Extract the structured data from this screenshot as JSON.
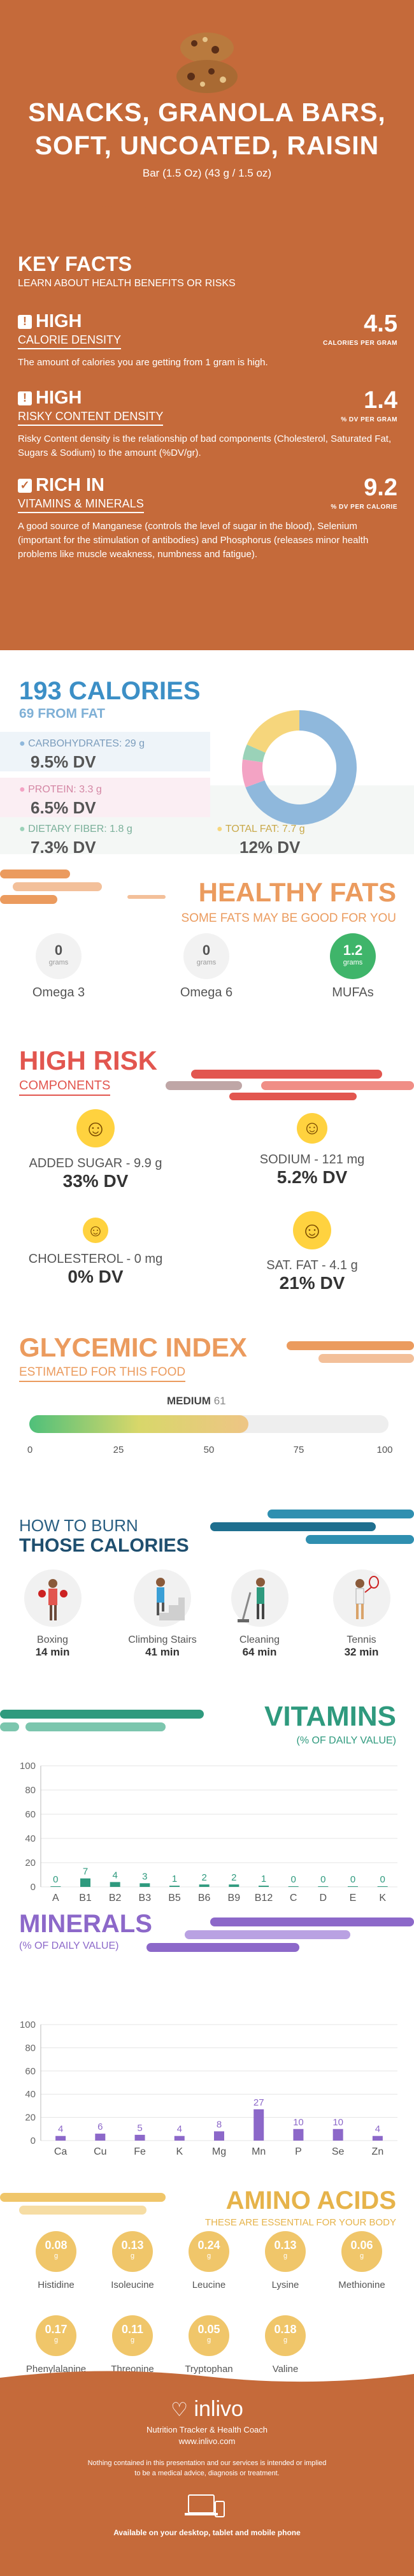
{
  "header": {
    "title_line1": "SNACKS, GRANOLA BARS,",
    "title_line2": "SOFT, UNCOATED, RAISIN",
    "serving": "Bar (1.5 Oz) (43 g / 1.5 oz)"
  },
  "key_facts": {
    "title": "KEY FACTS",
    "subtitle": "LEARN ABOUT HEALTH BENEFITS OR RISKS",
    "items": [
      {
        "badge": "HIGH",
        "label": "CALORIE DENSITY",
        "desc": "The amount of calories you are getting from 1 gram is high.",
        "value": "4.5",
        "unit": "CALORIES PER GRAM"
      },
      {
        "badge": "HIGH",
        "label": "RISKY CONTENT DENSITY",
        "desc": "Risky Content density is the relationship of bad components (Cholesterol, Saturated Fat, Sugars & Sodium) to the amount (%DV/gr).",
        "value": "1.4",
        "unit": "% DV PER GRAM"
      },
      {
        "badge": "RICH IN",
        "label": "VITAMINS & MINERALS",
        "desc": "A good source of Manganese (controls the level of sugar in the blood), Selenium (important for the stimulation of antibodies) and Phosphorus (releases minor health problems like muscle weakness, numbness and fatigue).",
        "value": "9.2",
        "unit": "% DV PER CALORIE"
      }
    ]
  },
  "calories": {
    "title": "193 CALORIES",
    "from_fat": "69 FROM FAT",
    "carbs": {
      "label": "CARBOHYDRATES: 29 g",
      "dv": "9.5% DV"
    },
    "protein": {
      "label": "PROTEIN: 3.3 g",
      "dv": "6.5% DV"
    },
    "fiber": {
      "label": "DIETARY FIBER: 1.8 g",
      "dv": "7.3% DV"
    },
    "fat": {
      "label": "TOTAL FAT: 7.7 g",
      "dv": "12% DV"
    },
    "donut": [
      {
        "name": "carbs",
        "value": 29,
        "color": "#8fb8dc"
      },
      {
        "name": "protein",
        "value": 3.3,
        "color": "#f3a3c4"
      },
      {
        "name": "fiber",
        "value": 1.8,
        "color": "#9ad2b8"
      },
      {
        "name": "fat",
        "value": 7.7,
        "color": "#f6d67c"
      }
    ]
  },
  "healthy_fats": {
    "title": "HEALTHY FATS",
    "subtitle": "SOME FATS MAY BE GOOD FOR YOU",
    "items": [
      {
        "value": "0",
        "unit": "grams",
        "name": "Omega 3"
      },
      {
        "value": "0",
        "unit": "grams",
        "name": "Omega 6"
      },
      {
        "value": "1.2",
        "unit": "grams",
        "name": "MUFAs"
      }
    ]
  },
  "high_risk": {
    "title": "HIGH RISK",
    "subtitle": "COMPONENTS",
    "items": [
      {
        "label": "ADDED SUGAR - 9.9 g",
        "dv": "33% DV"
      },
      {
        "label": "SODIUM - 121 mg",
        "dv": "5.2% DV"
      },
      {
        "label": "CHOLESTEROL - 0 mg",
        "dv": "0% DV"
      },
      {
        "label": "SAT. FAT - 4.1 g",
        "dv": "21% DV"
      }
    ]
  },
  "glycemic": {
    "title": "GLYCEMIC INDEX",
    "subtitle": "ESTIMATED FOR THIS FOOD",
    "level": "MEDIUM",
    "value": 61,
    "value_text": "61",
    "ticks": [
      "0",
      "25",
      "50",
      "75",
      "100"
    ]
  },
  "burn": {
    "title1": "HOW TO BURN",
    "title2": "THOSE CALORIES",
    "items": [
      {
        "name": "Boxing",
        "time": "14 min"
      },
      {
        "name": "Climbing Stairs",
        "time": "41 min"
      },
      {
        "name": "Cleaning",
        "time": "64 min"
      },
      {
        "name": "Tennis",
        "time": "32 min"
      }
    ]
  },
  "vitamins": {
    "title": "VITAMINS",
    "subtitle": "(% OF DAILY VALUE)"
  },
  "minerals": {
    "title": "MINERALS",
    "subtitle": "(% OF DAILY VALUE)"
  },
  "chart_data": [
    {
      "type": "bar",
      "title": "VITAMINS",
      "ylabel": "% OF DAILY VALUE",
      "ylim": [
        0,
        100
      ],
      "yticks": [
        "0",
        "20",
        "40",
        "60",
        "80",
        "100"
      ],
      "categories": [
        "A",
        "B1",
        "B2",
        "B3",
        "B5",
        "B6",
        "B9",
        "B12",
        "C",
        "D",
        "E",
        "K"
      ],
      "values": [
        0,
        7,
        4,
        3,
        1,
        2,
        2,
        1,
        0,
        0,
        0,
        0
      ],
      "value_labels": [
        "0",
        "7",
        "4",
        "3",
        "1",
        "2",
        "2",
        "1",
        "0",
        "0",
        "0",
        "0"
      ],
      "color": "#2f9a7e"
    },
    {
      "type": "bar",
      "title": "MINERALS",
      "ylabel": "% OF DAILY VALUE",
      "ylim": [
        0,
        100
      ],
      "yticks": [
        "0",
        "20",
        "40",
        "60",
        "80",
        "100"
      ],
      "categories": [
        "Ca",
        "Cu",
        "Fe",
        "K",
        "Mg",
        "Mn",
        "P",
        "Se",
        "Zn"
      ],
      "values": [
        4,
        6,
        5,
        4,
        8,
        27,
        10,
        10,
        4
      ],
      "value_labels": [
        "4",
        "6",
        "5",
        "4",
        "8",
        "27",
        "10",
        "10",
        "4"
      ],
      "color": "#8c68c9"
    }
  ],
  "amino": {
    "title": "AMINO ACIDS",
    "subtitle": "THESE ARE ESSENTIAL FOR YOUR BODY",
    "items": [
      {
        "value": "0.08",
        "unit": "g",
        "name": "Histidine"
      },
      {
        "value": "0.13",
        "unit": "g",
        "name": "Isoleucine"
      },
      {
        "value": "0.24",
        "unit": "g",
        "name": "Leucine"
      },
      {
        "value": "0.13",
        "unit": "g",
        "name": "Lysine"
      },
      {
        "value": "0.06",
        "unit": "g",
        "name": "Methionine"
      },
      {
        "value": "0.17",
        "unit": "g",
        "name": "Phenylalanine"
      },
      {
        "value": "0.11",
        "unit": "g",
        "name": "Threonine"
      },
      {
        "value": "0.05",
        "unit": "g",
        "name": "Tryptophan"
      },
      {
        "value": "0.18",
        "unit": "g",
        "name": "Valine"
      }
    ]
  },
  "footer": {
    "brand": "inlivo",
    "tagline": "Nutrition Tracker & Health Coach",
    "url": "www.inlivo.com",
    "disclaimer1": "Nothing contained in this presentation and our services is intended or implied",
    "disclaimer2": "to be a medical advice, diagnosis or treatment.",
    "available": "Available on your desktop, tablet and mobile phone"
  }
}
